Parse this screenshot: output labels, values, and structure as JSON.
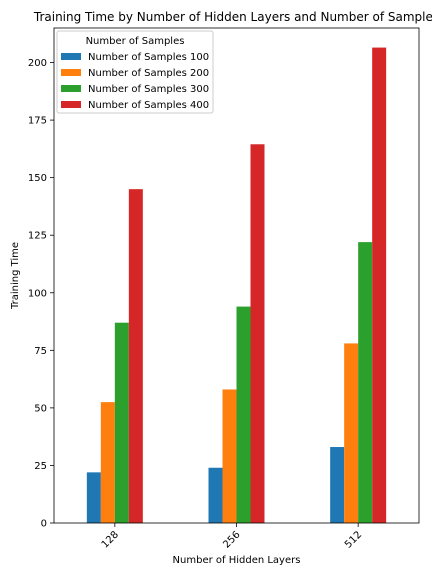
{
  "chart_data": {
    "type": "bar",
    "title": "Training Time by Number of Hidden Layers and Number of Samples",
    "xlabel": "Number of Hidden Layers",
    "ylabel": "Training Time",
    "categories": [
      "128",
      "256",
      "512"
    ],
    "ylim": [
      0,
      215
    ],
    "yticks": [
      0,
      25,
      50,
      75,
      100,
      125,
      150,
      175,
      200
    ],
    "grid": false,
    "legend": {
      "title": "Number of Samples",
      "placement": "top-left"
    },
    "series": [
      {
        "name": "Number of Samples 100",
        "color": "#1f77b4",
        "values": [
          22,
          24,
          33
        ]
      },
      {
        "name": "Number of Samples 200",
        "color": "#ff7f0e",
        "values": [
          52.5,
          58,
          78
        ]
      },
      {
        "name": "Number of Samples 300",
        "color": "#2ca02c",
        "values": [
          87,
          94,
          122
        ]
      },
      {
        "name": "Number of Samples 400",
        "color": "#d62728",
        "values": [
          145,
          164.5,
          206.5
        ]
      }
    ]
  }
}
